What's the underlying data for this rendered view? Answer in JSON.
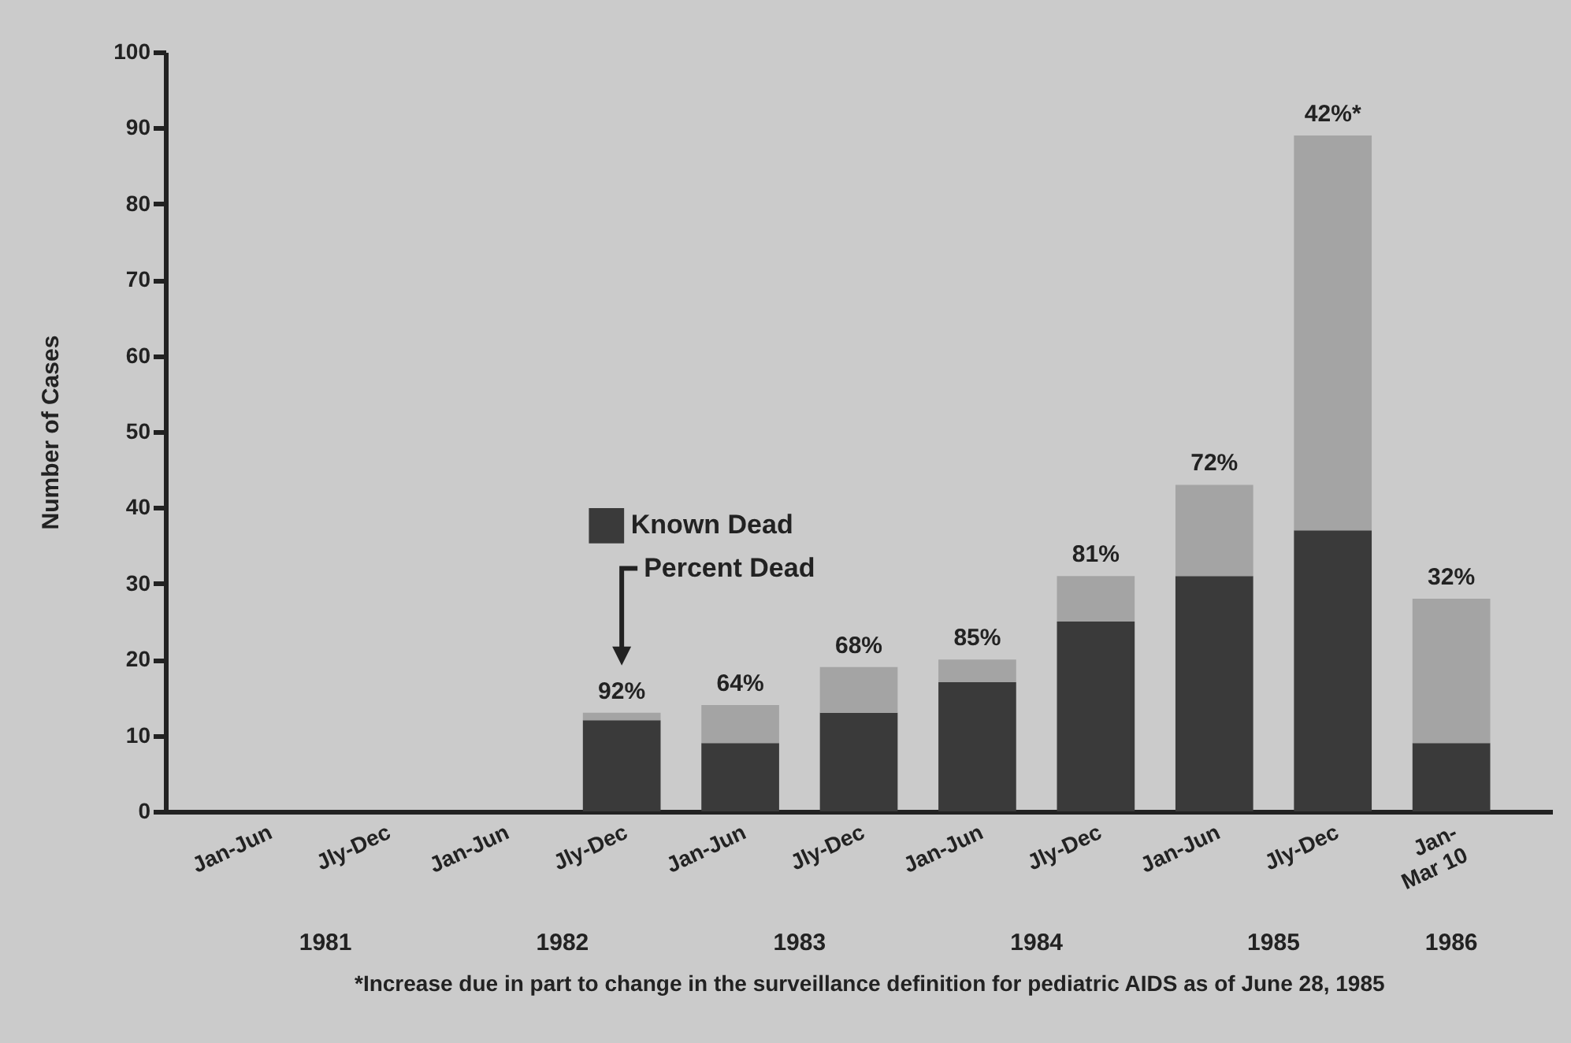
{
  "chart_data": {
    "type": "bar",
    "stacked": true,
    "ylabel": "Number of Cases",
    "categories": [
      "Jan-Jun",
      "Jly-Dec",
      "Jan-Jun",
      "Jly-Dec",
      "Jan-Jun",
      "Jly-Dec",
      "Jan-Jun",
      "Jly-Dec",
      "Jan-Jun",
      "Jly-Dec",
      "Jan-\nMar 10"
    ],
    "series": [
      {
        "name": "Known Dead",
        "color": "#3a3a3a",
        "values": [
          null,
          null,
          null,
          12,
          9,
          13,
          17,
          25,
          31,
          37,
          9
        ]
      },
      {
        "color": "#a4a4a4",
        "values": [
          null,
          null,
          null,
          1,
          5,
          6,
          3,
          6,
          12,
          52,
          19
        ]
      }
    ],
    "ylim": [
      0,
      100
    ],
    "yticks": [
      0,
      10,
      20,
      30,
      40,
      50,
      60,
      70,
      80,
      90,
      100
    ],
    "grid": false,
    "legend": "center",
    "annotations": [
      "Percent Dead",
      {
        "text": "92%",
        "y": 13
      },
      {
        "text": "64%",
        "y": 14
      },
      {
        "text": "68%",
        "y": 19
      },
      {
        "text": "85%",
        "y": 20
      },
      {
        "text": "81%",
        "y": 31
      },
      {
        "text": "72%",
        "y": 43
      },
      {
        "text": "42%*",
        "y": 89
      },
      {
        "text": "32%",
        "y": 28
      },
      "1981",
      "1982",
      "1983",
      "1984",
      "1985",
      "1986",
      "*Increase due in part to change in the surveillance definition for pediatric AIDS as of June 28, 1985"
    ]
  }
}
